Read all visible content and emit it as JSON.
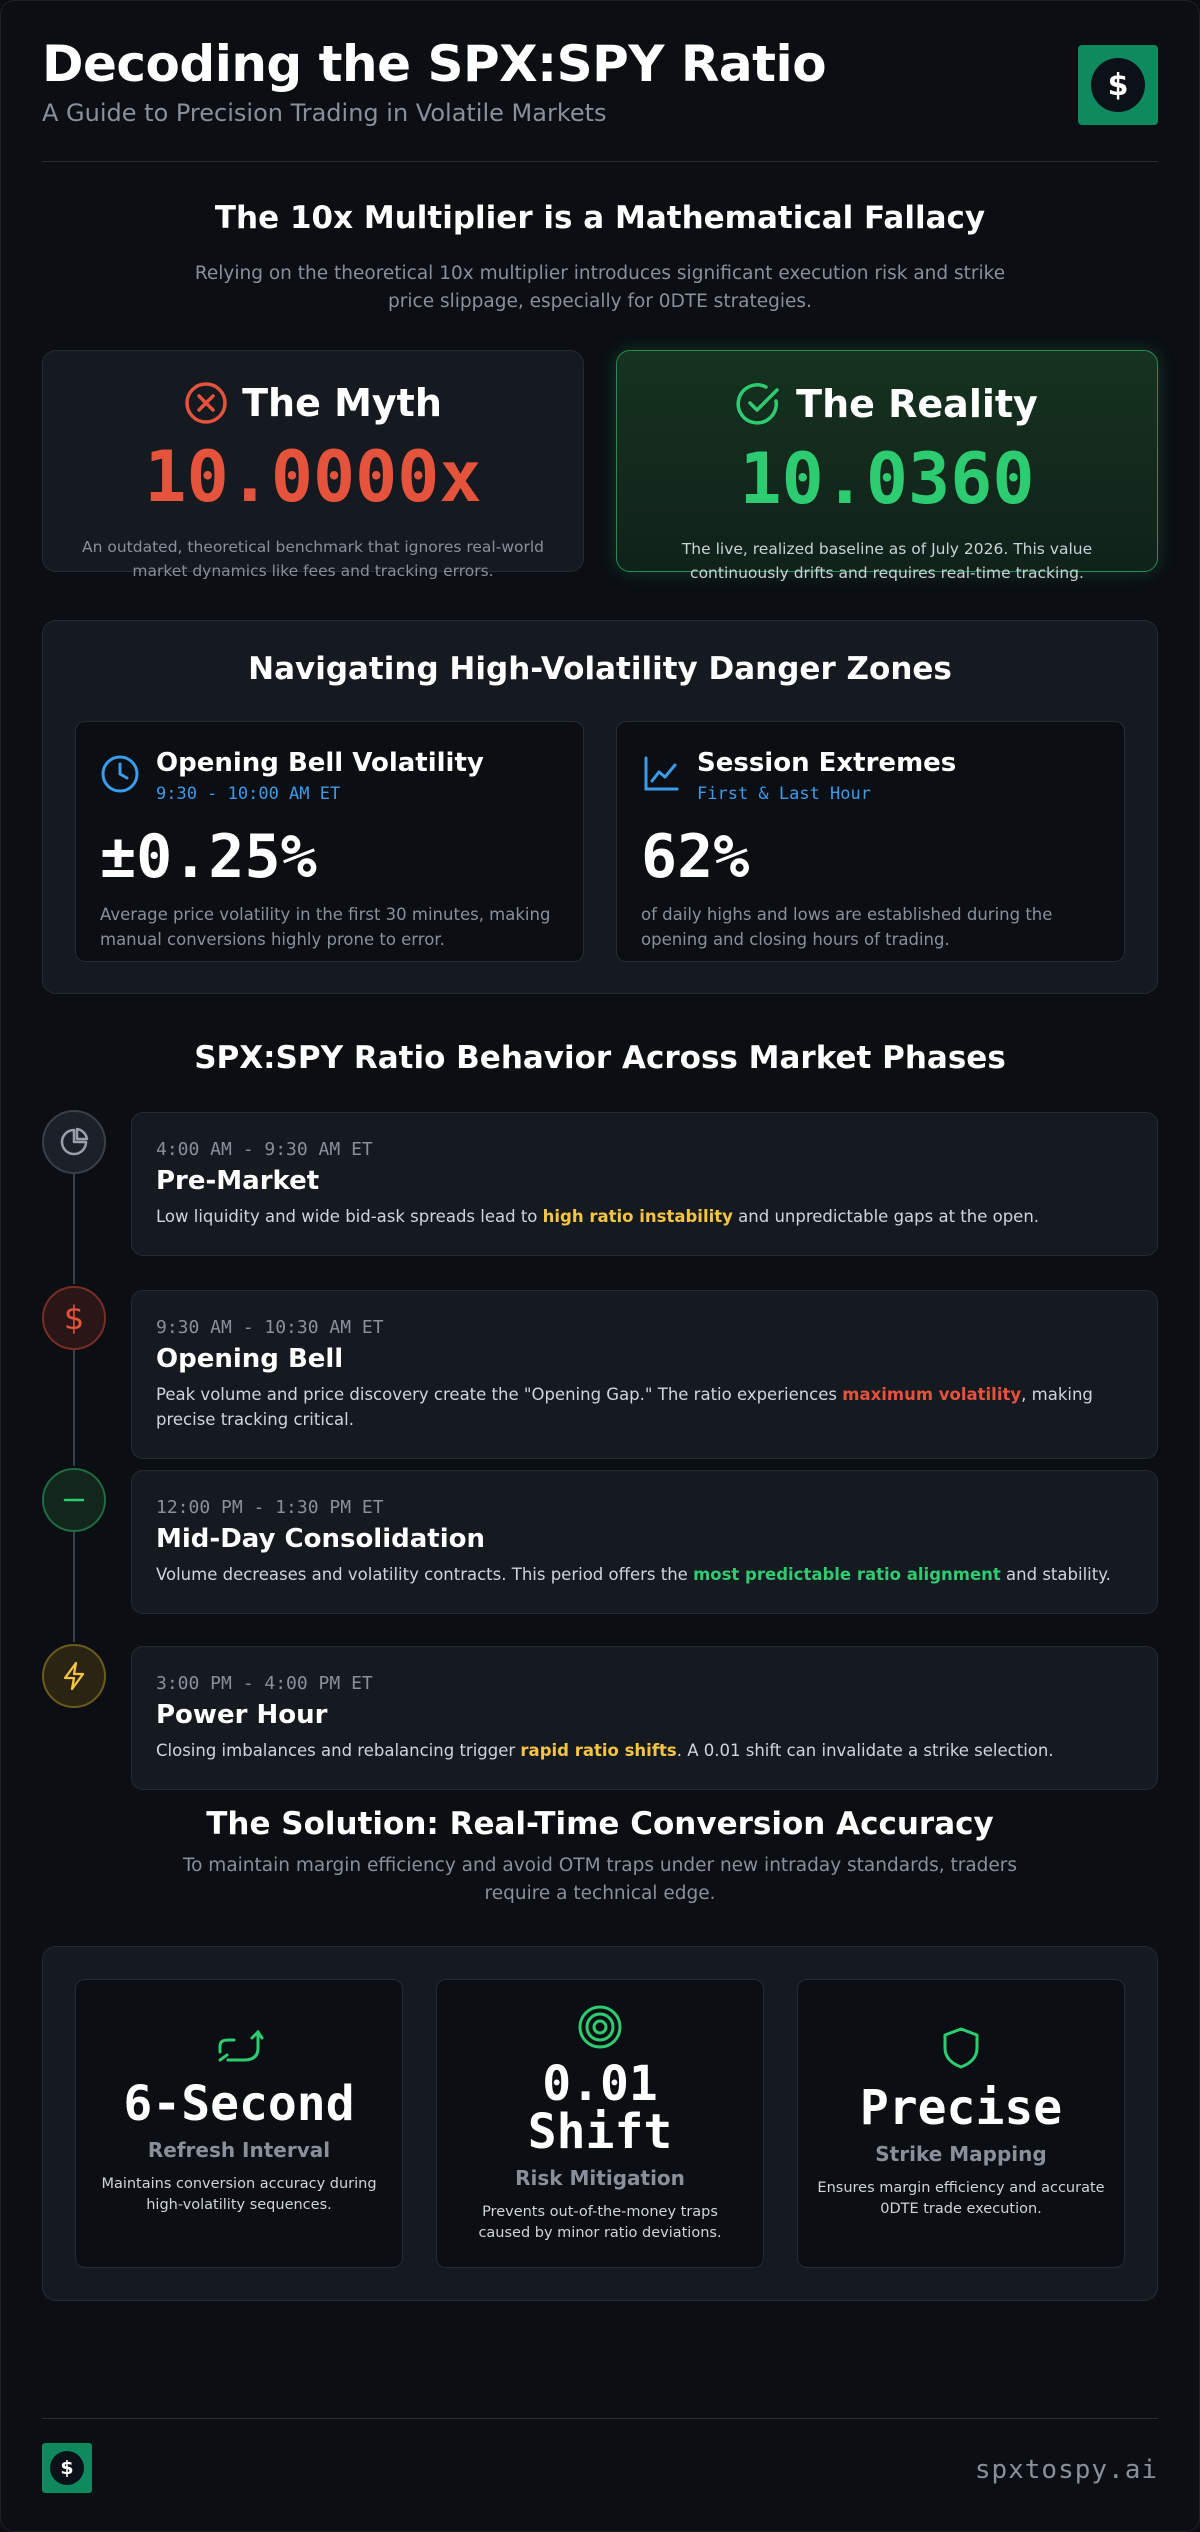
{
  "header": {
    "title": "Decoding the SPX:SPY Ratio",
    "subtitle": "A Guide to Precision Trading in Volatile Markets",
    "logo_glyph": "$"
  },
  "fallacy": {
    "heading": "The 10x Multiplier is a Mathematical Fallacy",
    "lead": "Relying on the theoretical 10x multiplier introduces significant execution risk and strike price slippage, especially for 0DTE strategies.",
    "myth": {
      "title": "The Myth",
      "value": "10.0000x",
      "description": "An outdated, theoretical benchmark that ignores real-world market dynamics like fees and tracking errors.",
      "icon": "x-circle-icon"
    },
    "reality": {
      "title": "The Reality",
      "value": "10.0360",
      "description": "The live, realized baseline as of July 2026. This value continuously drifts and requires real-time tracking.",
      "icon": "check-circle-icon"
    }
  },
  "danger_zones": {
    "heading": "Navigating High-Volatility Danger Zones",
    "cards": [
      {
        "title": "Opening Bell Volatility",
        "time": "9:30 - 10:00 AM ET",
        "value": "±0.25%",
        "description": "Average price volatility in the first 30 minutes, making manual conversions highly prone to error.",
        "icon": "clock-icon"
      },
      {
        "title": "Session Extremes",
        "time": "First & Last Hour",
        "value": "62%",
        "description": "of daily highs and lows are established during the opening and closing hours of trading.",
        "icon": "line-chart-icon"
      }
    ]
  },
  "phases": {
    "heading": "SPX:SPY Ratio Behavior Across Market Phases",
    "items": [
      {
        "time": "4:00 AM - 9:30 AM ET",
        "name": "Pre-Market",
        "desc_before": "Low liquidity and wide bid-ask spreads lead to ",
        "highlight": "high ratio instability",
        "desc_after": " and unpredictable gaps at the open.",
        "color": "#f5c542",
        "icon": "pie-chart-icon"
      },
      {
        "time": "9:30 AM - 10:30 AM ET",
        "name": "Opening Bell",
        "desc_before": "Peak volume and price discovery create the \"Opening Gap.\" The ratio experiences ",
        "highlight": "maximum volatility",
        "desc_after": ", making precise tracking critical.",
        "color": "#e5533d",
        "icon": "dollar-icon"
      },
      {
        "time": "12:00 PM - 1:30 PM ET",
        "name": "Mid-Day Consolidation",
        "desc_before": "Volume decreases and volatility contracts. This period offers the ",
        "highlight": "most predictable ratio alignment",
        "desc_after": " and stability.",
        "color": "#2ecc71",
        "icon": "minus-icon"
      },
      {
        "time": "3:00 PM - 4:00 PM ET",
        "name": "Power Hour",
        "desc_before": "Closing imbalances and rebalancing trigger ",
        "highlight": "rapid ratio shifts",
        "desc_after": ". A 0.01 shift can invalidate a strike selection.",
        "color": "#f5c542",
        "icon": "lightning-icon"
      }
    ]
  },
  "solution": {
    "heading": "The Solution: Real-Time Conversion Accuracy",
    "lead": "To maintain margin efficiency and avoid OTM traps under new intraday standards, traders require a technical edge.",
    "cards": [
      {
        "value": "6-Second",
        "label": "Refresh Interval",
        "description": "Maintains conversion accuracy during high-volatility sequences.",
        "icon": "refresh-arrows-icon"
      },
      {
        "value": "0.01 Shift",
        "label": "Risk Mitigation",
        "description": "Prevents out-of-the-money traps caused by minor ratio deviations.",
        "icon": "target-icon"
      },
      {
        "value": "Precise",
        "label": "Strike Mapping",
        "description": "Ensures margin efficiency and accurate 0DTE trade execution.",
        "icon": "shield-icon"
      }
    ]
  },
  "footer": {
    "brand": "spxtospy.ai",
    "logo_glyph": "$"
  },
  "colors": {
    "background": "#0b0e13",
    "card": "#151920",
    "red": "#e5533d",
    "green": "#2ecc71",
    "blue": "#3b9cec",
    "yellow": "#f5c542",
    "muted": "#8a909b"
  }
}
